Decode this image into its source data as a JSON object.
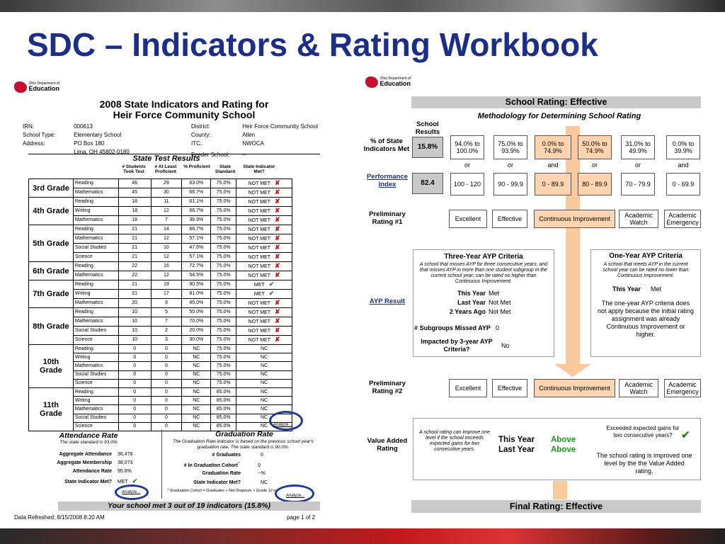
{
  "slide_title": "SDC – Indicators & Rating Workbook",
  "left_logo": {
    "small": "Ohio Department of",
    "big": "Education"
  },
  "right_logo": {
    "small": "Ohio Department of",
    "big": "Education"
  },
  "report": {
    "title_line1": "2008 State Indicators and Rating for",
    "title_line2": "Heir Force Community School",
    "irn_label": "IRN:",
    "irn": "000613",
    "type_label": "School Type:",
    "type": "Elementary School",
    "address_label": "Address:",
    "address1": "PO Box 180",
    "address2": "Lima, OH  45802-0180",
    "district_label": "District:",
    "district": "Heir Force Community School",
    "county_label": "County:",
    "county": "Allen",
    "itc_label": "ITC:",
    "itc": "NWOCA",
    "feeder_label": "Feeder School:",
    "feeder": "--",
    "test_results_title": "State Test Results",
    "col_students": "# Students Took Test",
    "col_proficient": "# At Least Proficient",
    "col_pct": "% Proficient",
    "col_standard": "State Standard",
    "col_met": "State Indicator Met?",
    "grades": [
      {
        "grade": "3rd Grade",
        "rows": [
          [
            "Reading",
            "46",
            "29",
            "63.0%",
            "75.0%",
            "NOT MET",
            "x"
          ],
          [
            "Mathematics",
            "45",
            "30",
            "66.7%",
            "75.0%",
            "NOT MET",
            "x"
          ]
        ]
      },
      {
        "grade": "4th Grade",
        "rows": [
          [
            "Reading",
            "18",
            "11",
            "61.1%",
            "75.0%",
            "NOT MET",
            "x"
          ],
          [
            "Writing",
            "18",
            "12",
            "66.7%",
            "75.0%",
            "NOT MET",
            "x"
          ],
          [
            "Mathematics",
            "18",
            "7",
            "38.9%",
            "75.0%",
            "NOT MET",
            "x"
          ]
        ]
      },
      {
        "grade": "5th Grade",
        "rows": [
          [
            "Reading",
            "21",
            "14",
            "66.7%",
            "75.0%",
            "NOT MET",
            "x"
          ],
          [
            "Mathematics",
            "21",
            "12",
            "57.1%",
            "75.0%",
            "NOT MET",
            "x"
          ],
          [
            "Social Studies",
            "21",
            "10",
            "47.6%",
            "75.0%",
            "NOT MET",
            "x"
          ],
          [
            "Science",
            "21",
            "12",
            "57.1%",
            "75.0%",
            "NOT MET",
            "x"
          ]
        ]
      },
      {
        "grade": "6th Grade",
        "rows": [
          [
            "Reading",
            "22",
            "16",
            "72.7%",
            "75.0%",
            "NOT MET",
            "x"
          ],
          [
            "Mathematics",
            "22",
            "12",
            "54.5%",
            "75.0%",
            "NOT MET",
            "x"
          ]
        ]
      },
      {
        "grade": "7th Grade",
        "rows": [
          [
            "Reading",
            "21",
            "19",
            "90.5%",
            "75.0%",
            "MET",
            "ok"
          ],
          [
            "Writing",
            "21",
            "17",
            "81.0%",
            "75.0%",
            "MET",
            "ok"
          ],
          [
            "Mathematics",
            "20",
            "9",
            "45.0%",
            "75.0%",
            "NOT MET",
            "x"
          ]
        ]
      },
      {
        "grade": "8th Grade",
        "rows": [
          [
            "Reading",
            "10",
            "5",
            "50.0%",
            "75.0%",
            "NOT MET",
            "x"
          ],
          [
            "Mathematics",
            "10",
            "7",
            "70.0%",
            "75.0%",
            "NOT MET",
            "x"
          ],
          [
            "Social Studies",
            "10",
            "2",
            "20.0%",
            "75.0%",
            "NOT MET",
            "x"
          ],
          [
            "Science",
            "10",
            "3",
            "30.0%",
            "75.0%",
            "NOT MET",
            "x"
          ]
        ]
      },
      {
        "grade": "10th Grade",
        "rows": [
          [
            "Reading",
            "0",
            "0",
            "NC",
            "75.0%",
            "NC",
            ""
          ],
          [
            "Writing",
            "0",
            "0",
            "NC",
            "75.0%",
            "NC",
            ""
          ],
          [
            "Mathematics",
            "0",
            "0",
            "NC",
            "75.0%",
            "NC",
            ""
          ],
          [
            "Social Studies",
            "0",
            "0",
            "NC",
            "75.0%",
            "NC",
            ""
          ],
          [
            "Science",
            "0",
            "0",
            "NC",
            "75.0%",
            "NC",
            ""
          ]
        ]
      },
      {
        "grade": "11th Grade",
        "rows": [
          [
            "Reading",
            "0",
            "0",
            "NC",
            "85.0%",
            "NC",
            ""
          ],
          [
            "Writing",
            "0",
            "0",
            "NC",
            "85.0%",
            "NC",
            ""
          ],
          [
            "Mathematics",
            "0",
            "0",
            "NC",
            "85.0%",
            "NC",
            ""
          ],
          [
            "Social Studies",
            "0",
            "0",
            "NC",
            "85.0%",
            "NC",
            ""
          ],
          [
            "Science",
            "0",
            "0",
            "NC",
            "85.0%",
            "NC",
            ""
          ]
        ]
      }
    ],
    "analyze": "Analyze...",
    "attendance_title": "Attendance Rate",
    "attendance_note": "The state standard is 93.0%",
    "agg_att_label": "Aggregate Attendance",
    "agg_att": "36,478",
    "agg_mem_label": "Aggregate Membership",
    "agg_mem": "38,073",
    "att_rate_label": "Attendance Rate",
    "att_rate": "95.8%",
    "att_met_label": "State Indicator Met?",
    "att_met": "MET",
    "graduation_title": "Graduation Rate",
    "graduation_note": "The Graduation Rate indicator is based on the previous school year's graduation rate.  The state standard is 90.0%.",
    "grads_label": "# Graduates",
    "grads": "0",
    "cohort_label": "# In Graduation Cohort",
    "cohort_sup": "*",
    "cohort": "0",
    "grad_rate_label": "Graduation Rate",
    "grad_rate": "--%",
    "grad_met_label": "State Indicator Met?",
    "grad_met": "NC",
    "footnote": "* Graduation Cohort = Graduates + Net Dropouts + Grade 12 non-graduates",
    "summary": "Your school met 3 out of 19 indicators (15.8%)",
    "refreshed": "Data Refreshed:  8/15/2008 8:20 AM",
    "page": "page  1 of  2"
  },
  "method": {
    "rating_bar": "School Rating: Effective",
    "methodology": "Methodology for Determining School Rating",
    "school_results": "School Results",
    "pct_label": "% of State Indicators Met",
    "pct_value": "15.8%",
    "pct_ranges": [
      "94.0% to 100.0%",
      "75.0% to 93.9%",
      "0.0% to 74.9%",
      "50.0% to 74.9%",
      "31.0% to 49.9%",
      "0.0% to 39.9%"
    ],
    "connectors": [
      "or",
      "or",
      "and",
      "or",
      "or",
      "and"
    ],
    "pi_label": "Performance Index",
    "pi_value": "82.4",
    "pi_ranges": [
      "100 - 120",
      "90 - 99.9",
      "0 - 89.9",
      "80 - 89.9",
      "70 - 79.9",
      "0 - 69.9"
    ],
    "prelim1_label": "Preliminary Rating #1",
    "ratings": [
      "Excellent",
      "Effective",
      "Continuous Improvement",
      "Academic Watch",
      "Academic Emergency"
    ],
    "three_year_title": "Three-Year AYP Criteria",
    "three_year_note": "A school that misses AYP for three consecutive years;  and that misses AYP in more than one student subgroup in the current school year;  can be rated no higher than Continuous Improvement.",
    "this_year_label": "This Year",
    "this_year": "Met",
    "last_year_label": "Last Year",
    "last_year": "Not Met",
    "two_years_label": "2 Years Ago",
    "two_years": "Not Met",
    "subgroups_label": "# Subgroups Missed AYP",
    "subgroups": "0",
    "impacted_label": "Impacted by 3-year AYP Criteria?",
    "impacted": "No",
    "ayp_label": "AYP Result",
    "one_year_title": "One-Year AYP Criteria",
    "one_year_note": "A school that meets AYP in the current school year can be rated no lower than Continuous Improvement.",
    "one_this_year_label": "This Year",
    "one_this_year": "Met",
    "one_year_text": "The one-year AYP criteria does not apply because the initial rating assignment was already Continuous Improvement or higher.",
    "prelim2_label": "Preliminary Rating #2",
    "va_label": "Value Added Rating",
    "va_note": "A school rating can improve one level if the school exceeds expected gains for two consecutive years.",
    "va_this_label": "This Year",
    "va_this": "Above",
    "va_last_label": "Last Year",
    "va_last": "Above",
    "va_exceeded": "Exceeded expected gains for two consecutive years?",
    "va_text": "The school rating is improved one level by the the Value Added rating.",
    "final_bar": "Final Rating: Effective",
    "colors": {
      "accent_orange": "#fcd5b0",
      "grey": "#c9c9c9",
      "title_blue": "#1b2f8a",
      "x_red": "#c21a1a",
      "check_green": "#2b8a2b",
      "value_added_green": "#1c9a1c"
    }
  }
}
